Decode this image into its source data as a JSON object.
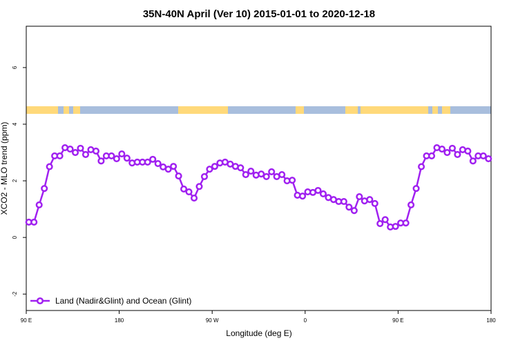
{
  "chart_data": {
    "type": "line",
    "title": "35N-40N April (Ver 10)   2015-01-01 to 2020-12-18",
    "x_label": "Longitude (deg E)",
    "y_label": "XCO2 - MLO trend (ppm)",
    "xlim": [
      90,
      540
    ],
    "ylim": [
      -2.58,
      7.46
    ],
    "xticks": [
      {
        "value": 90,
        "label": "90 E"
      },
      180,
      {
        "value": 270,
        "label": "90 W"
      },
      {
        "value": 360,
        "label": "0"
      },
      {
        "value": 450,
        "label": "90 E"
      },
      {
        "value": 540,
        "label": "180"
      }
    ],
    "yticks": [
      -2,
      0,
      2,
      4,
      6
    ],
    "legend": "bottomleft",
    "x": [
      92.5,
      97.5,
      102.5,
      107.5,
      112.5,
      117.5,
      122.5,
      127.5,
      132.5,
      137.5,
      142.5,
      147.5,
      152.5,
      157.5,
      162.5,
      167.5,
      172.5,
      177.5,
      182.5,
      187.5,
      192.5,
      197.5,
      202.5,
      207.5,
      212.5,
      217.5,
      222.5,
      227.5,
      232.5,
      237.5,
      242.5,
      247.5,
      252.5,
      257.5,
      262.5,
      267.5,
      272.5,
      277.5,
      282.5,
      287.5,
      292.5,
      297.5,
      302.5,
      307.5,
      312.5,
      317.5,
      322.5,
      327.5,
      332.5,
      337.5,
      342.5,
      347.5,
      352.5,
      357.5,
      362.5,
      367.5,
      372.5,
      377.5,
      382.5,
      387.5,
      392.5,
      397.5,
      402.5,
      407.5,
      412.5,
      417.5,
      422.5,
      427.5,
      432.5,
      437.5,
      442.5,
      447.5,
      452.5,
      457.5,
      462.5,
      467.5,
      472.5,
      477.5,
      482.5,
      487.5,
      492.5,
      497.5,
      502.5,
      507.5,
      512.5,
      517.5,
      522.5,
      527.5,
      532.5,
      537.5
    ],
    "series": [
      {
        "name": "Land (Nadir&Glint) and Ocean (Glint)",
        "color": "#a020f0",
        "values": [
          0.54,
          0.54,
          1.15,
          1.73,
          2.5,
          2.88,
          2.88,
          3.17,
          3.12,
          3.0,
          3.15,
          2.93,
          3.1,
          3.05,
          2.7,
          2.88,
          2.88,
          2.78,
          2.95,
          2.8,
          2.63,
          2.66,
          2.66,
          2.66,
          2.76,
          2.61,
          2.49,
          2.41,
          2.51,
          2.17,
          1.71,
          1.61,
          1.39,
          1.8,
          2.15,
          2.41,
          2.51,
          2.63,
          2.66,
          2.59,
          2.51,
          2.46,
          2.22,
          2.34,
          2.2,
          2.24,
          2.15,
          2.32,
          2.15,
          2.22,
          2.0,
          2.02,
          1.49,
          1.46,
          1.61,
          1.59,
          1.66,
          1.54,
          1.41,
          1.34,
          1.27,
          1.27,
          1.07,
          0.95,
          1.44,
          1.29,
          1.34,
          1.2,
          0.49,
          0.63,
          0.37,
          0.39,
          0.51,
          0.51,
          1.15,
          1.73,
          2.5,
          2.88,
          2.88,
          3.17,
          3.12,
          3.0,
          3.15,
          2.93,
          3.1,
          3.05,
          2.7,
          2.88,
          2.88,
          2.78
        ]
      }
    ]
  }
}
